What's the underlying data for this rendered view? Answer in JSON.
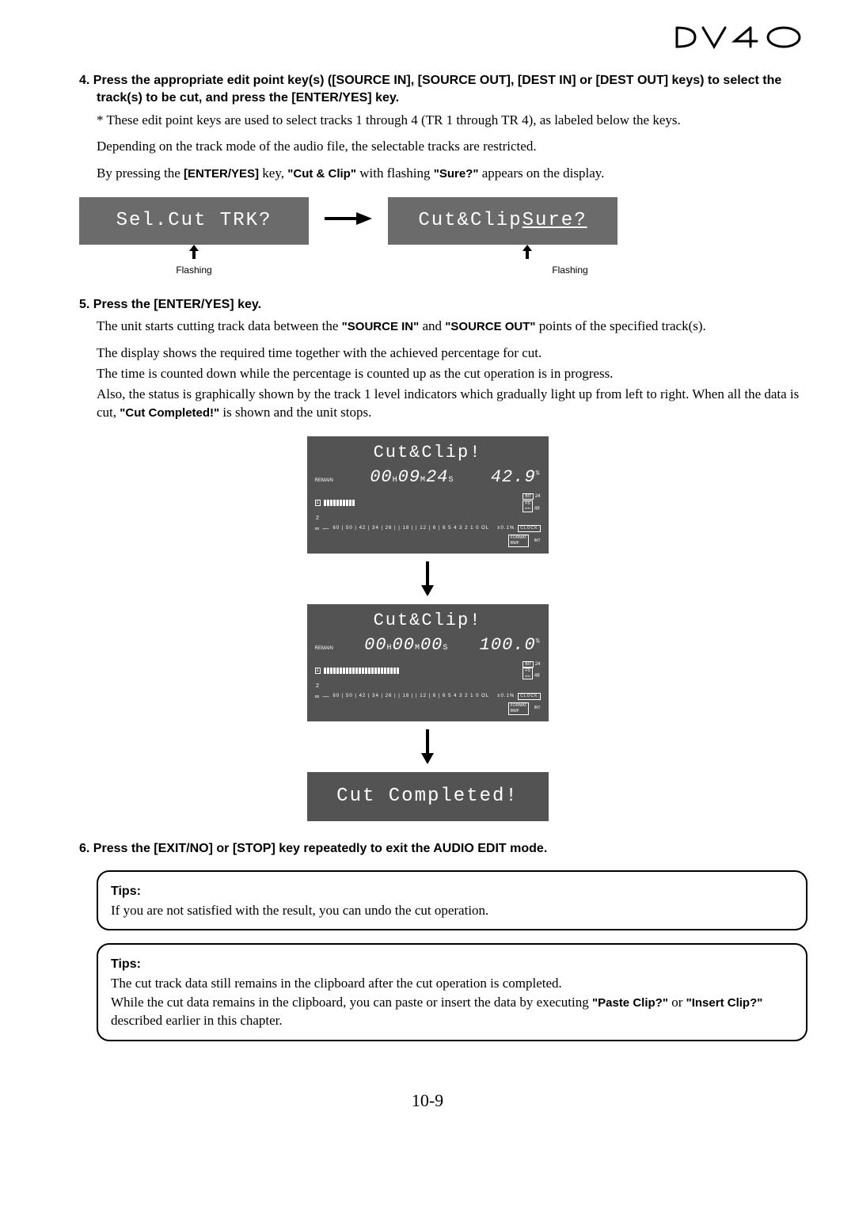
{
  "logo_text": "DV40",
  "step4": {
    "num": "4.",
    "heading": "Press the appropriate edit point key(s) ([SOURCE IN], [SOURCE OUT], [DEST IN] or [DEST OUT] keys) to select the track(s) to be cut, and press the [ENTER/YES] key.",
    "note": "* These edit point keys are used to select tracks 1 through 4 (TR 1 through TR 4), as labeled below the keys.",
    "p1": "Depending on the track mode of the audio file, the selectable tracks are restricted.",
    "p2a": "By pressing the ",
    "p2b": "[ENTER/YES]",
    "p2c": " key, ",
    "p2d": "\"Cut & Clip\"",
    "p2e": " with flashing ",
    "p2f": "\"Sure?\"",
    "p2g": " appears on the display."
  },
  "display1": {
    "left": "Sel.Cut TRK?",
    "right_a": "Cut&Clip ",
    "right_b": "Sure?",
    "flashing": "Flashing"
  },
  "step5": {
    "num": "5.",
    "heading": "Press the [ENTER/YES] key.",
    "p1a": "The unit starts cutting track data between the ",
    "p1b": "\"SOURCE IN\"",
    "p1c": " and ",
    "p1d": "\"SOURCE OUT\"",
    "p1e": " points of the specified track(s).",
    "p2": "The display shows the required time together with the achieved percentage for cut.",
    "p3": "The time is counted down while the percentage is counted up as the cut operation is in progress.",
    "p4a": "Also, the status is graphically shown by the track 1 level indicators which gradually light up from left to right.  When all the data is cut, ",
    "p4b": "\"Cut Completed!\"",
    "p4c": " is shown and the unit stops."
  },
  "lcd1": {
    "title": "Cut&Clip!",
    "remain": "REMAIN",
    "time_h": "00",
    "time_m": "09",
    "time_s": "24",
    "pct": "42.9",
    "meter_count": 10,
    "bit_label": "BIT",
    "bit_val": "24",
    "fs_label": "FS",
    "fs_val": "48",
    "fs_unit": "kHz",
    "scale": "60 | 50 | 42 | 34 | 26 |  | 18 |  | 12 |  6  | 6 5 4 3 2 1 0 OL",
    "vari": "±0.1%",
    "clock": "CLOCK",
    "clock_val": "INT",
    "format": "FORMAT",
    "format_val": "BWF"
  },
  "lcd2": {
    "title": "Cut&Clip!",
    "remain": "REMAIN",
    "time_h": "00",
    "time_m": "00",
    "time_s": "00",
    "pct": "100.0",
    "meter_count": 24,
    "bit_label": "BIT",
    "bit_val": "24",
    "fs_label": "FS",
    "fs_val": "48",
    "fs_unit": "kHz",
    "scale": "60 | 50 | 42 | 34 | 26 |  | 18 |  | 12 |  6  | 6 5 4 3 2 1 0 OL",
    "vari": "±0.1%",
    "clock": "CLOCK",
    "clock_val": "INT",
    "format": "FORMAT",
    "format_val": "BWF"
  },
  "lcd3": {
    "text": "Cut Completed!"
  },
  "step6": {
    "num": "6.",
    "heading": "Press the [EXIT/NO] or [STOP] key repeatedly to exit the AUDIO EDIT mode."
  },
  "tips1": {
    "head": "Tips:",
    "body": "If you are not satisfied with the result, you can undo the cut operation."
  },
  "tips2": {
    "head": "Tips:",
    "p1": "The cut track data still remains in the clipboard after the cut operation is completed.",
    "p2a": "While the cut data remains in the clipboard, you can paste or insert the data by executing ",
    "p2b": "\"Paste Clip?\"",
    "p2c": " or ",
    "p2d": "\"Insert Clip?\"",
    "p2e": " described earlier in this chapter."
  },
  "page_num": "10-9"
}
